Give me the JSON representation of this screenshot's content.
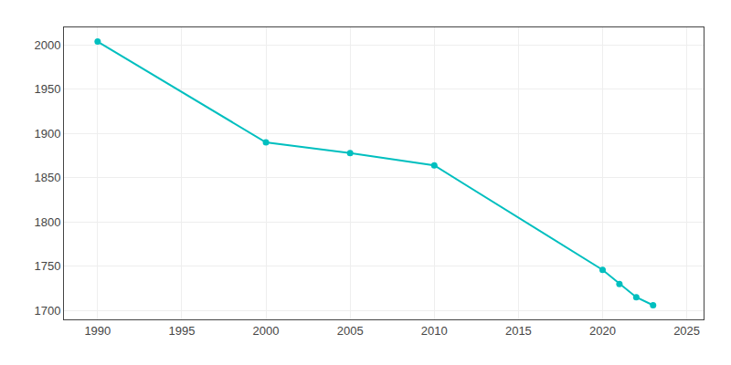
{
  "chart_data": {
    "type": "line",
    "x": [
      1990,
      2000,
      2005,
      2010,
      2020,
      2021,
      2022,
      2023
    ],
    "values": [
      2004,
      1890,
      1878,
      1864,
      1746,
      1730,
      1715,
      1706
    ],
    "color": "#00BFBF",
    "marker": "circle",
    "xlim": [
      1988,
      2026
    ],
    "ylim": [
      1690,
      2020
    ],
    "xticks": [
      1990,
      1995,
      2000,
      2005,
      2010,
      2015,
      2020,
      2025
    ],
    "yticks": [
      1700,
      1750,
      1800,
      1850,
      1900,
      1950,
      2000
    ],
    "grid": true
  }
}
